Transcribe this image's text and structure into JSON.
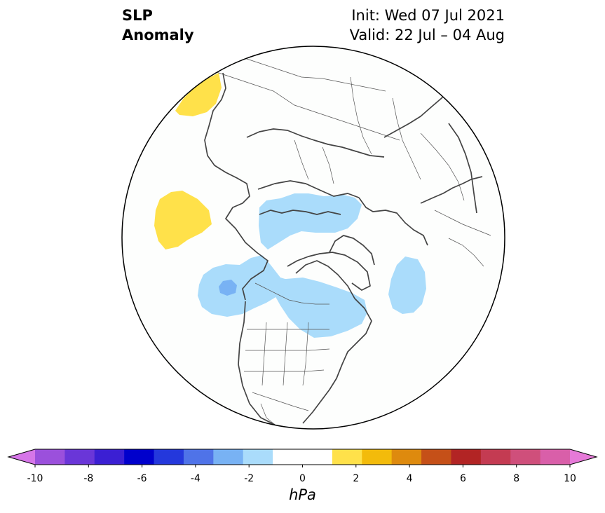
{
  "title": {
    "left_line1": "SLP",
    "left_line2": "Anomaly",
    "right_line1": "Init: Wed 07 Jul 2021",
    "right_line2": "Valid: 22 Jul – 04 Aug"
  },
  "colorbar": {
    "units": "hPa",
    "tick_labels": [
      "-10",
      "-8",
      "-6",
      "-4",
      "-2",
      "0",
      "2",
      "4",
      "6",
      "8",
      "10"
    ],
    "colors": [
      "#d676e8",
      "#9b50dc",
      "#6a36d8",
      "#3b1fd3",
      "#0000cc",
      "#2438dc",
      "#4f73e8",
      "#78b2f4",
      "#aadcfb",
      "#ffffff",
      "#ffffff",
      "#ffe14a",
      "#f3bb0b",
      "#de8a0e",
      "#c55018",
      "#b22424",
      "#c43b52",
      "#cf4f7b",
      "#d95fa9",
      "#e67ad8"
    ]
  },
  "map": {
    "projection": "north polar stereographic",
    "anomaly_regions": [
      {
        "name": "yellow-anomaly-nw",
        "level": "1 to 2 hPa",
        "color": "#ffe14a"
      },
      {
        "name": "yellow-anomaly-pacific",
        "level": "1 to 2 hPa",
        "color": "#ffe14a"
      },
      {
        "name": "blue-anomaly-siberia",
        "level": "-2 to -1 hPa",
        "color": "#aadcfb"
      },
      {
        "name": "blue-anomaly-alaska",
        "level": "-2 to -1 hPa",
        "color": "#aadcfb"
      },
      {
        "name": "blue-anomaly-alaska-core",
        "level": "-3 to -2 hPa",
        "color": "#78b2f4"
      },
      {
        "name": "blue-anomaly-canada",
        "level": "-2 to -1 hPa",
        "color": "#aadcfb"
      },
      {
        "name": "blue-anomaly-atlantic",
        "level": "-2 to -1 hPa",
        "color": "#aadcfb"
      }
    ]
  }
}
